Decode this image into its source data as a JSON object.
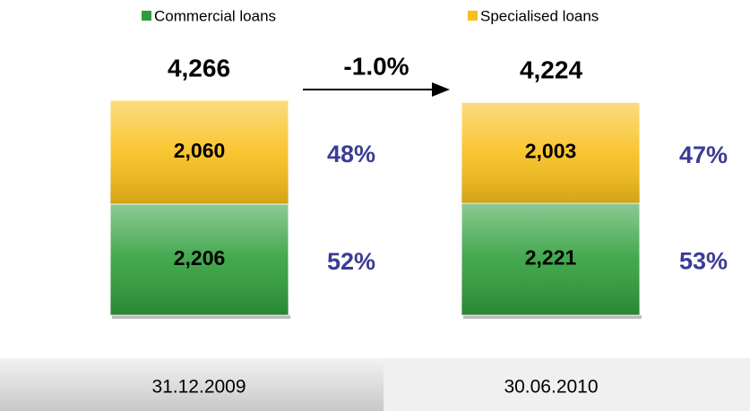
{
  "chart_data": {
    "type": "stacked-bar",
    "categories": [
      "31.12.2009",
      "30.06.2010"
    ],
    "series": [
      {
        "name": "Commercial loans",
        "color": "#2e9e3a",
        "values": [
          2206,
          2221
        ],
        "value_labels": [
          "2,206",
          "2,221"
        ],
        "shares": [
          52,
          53
        ],
        "share_labels": [
          "52%",
          "53%"
        ]
      },
      {
        "name": "Specialised loans",
        "color": "#f8bf1a",
        "values": [
          2060,
          2003
        ],
        "value_labels": [
          "2,060",
          "2,003"
        ],
        "shares": [
          48,
          47
        ],
        "share_labels": [
          "48%",
          "47%"
        ]
      }
    ],
    "totals": [
      4266,
      4224
    ],
    "total_labels": [
      "4,266",
      "4,224"
    ],
    "change": -1.0,
    "change_label": "-1.0%",
    "ylim": [
      0,
      4300
    ],
    "share_color": "#3b3b96"
  }
}
